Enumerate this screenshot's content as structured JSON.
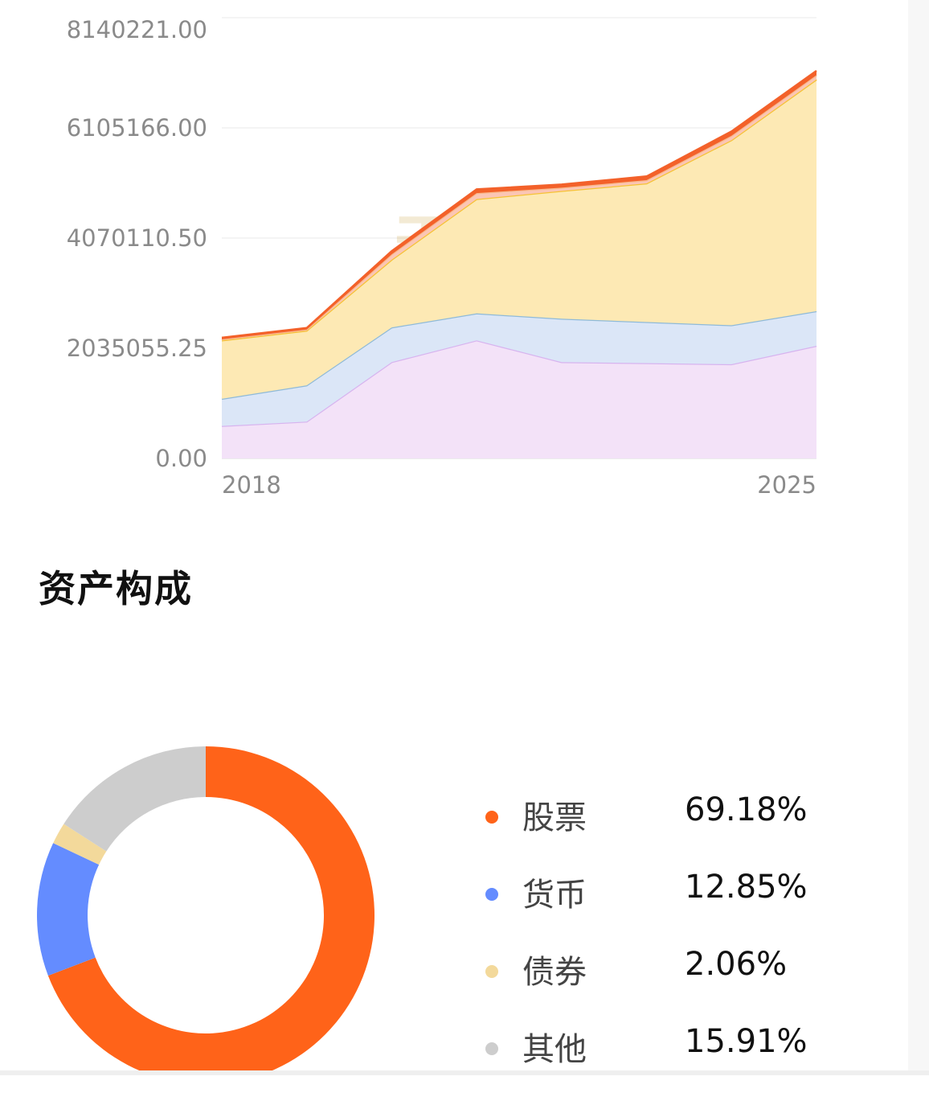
{
  "area_chart": {
    "watermark": "天天基金",
    "y_tick_labels": [
      "8140221.00",
      "6105166.00",
      "4070110.50",
      "2035055.25",
      "0.00"
    ],
    "x_tick_labels": [
      "2018",
      "2025"
    ]
  },
  "chart_data": [
    {
      "type": "area",
      "stacked": true,
      "x": [
        "2018",
        "",
        "",
        "",
        "",
        "",
        "",
        "2025"
      ],
      "ylim": [
        0,
        8140221
      ],
      "yticks": [
        0,
        2035055.25,
        4070110.5,
        6105166,
        8140221
      ],
      "grid": true,
      "series": [
        {
          "color": "#f3e2f8",
          "line_color": "#d7b4ef",
          "values": [
            600000,
            680000,
            1780000,
            2180000,
            1780000,
            1760000,
            1740000,
            2080000
          ]
        },
        {
          "color": "#dbe6f7",
          "line_color": "#8fbad8",
          "values": [
            500000,
            670000,
            640000,
            500000,
            800000,
            760000,
            720000,
            640000
          ]
        },
        {
          "color": "#fde9b4",
          "line_color": "#f6c235",
          "values": [
            1080000,
            1010000,
            1250000,
            2110000,
            2360000,
            2560000,
            3420000,
            4280000
          ]
        },
        {
          "color": "#fbc6b5",
          "line_color": "#f9b98d",
          "values": [
            20000,
            20000,
            100000,
            110000,
            60000,
            60000,
            80000,
            80000
          ]
        },
        {
          "color": "#f3612a",
          "line_color": "#f3612a",
          "values": [
            30000,
            30000,
            60000,
            70000,
            60000,
            70000,
            80000,
            80000
          ]
        }
      ]
    },
    {
      "type": "pie",
      "donut": true,
      "title": "资产构成",
      "slices": [
        {
          "label": "股票",
          "value": 69.18,
          "display": "69.18%",
          "color": "#ff6319"
        },
        {
          "label": "货币",
          "value": 12.85,
          "display": "12.85%",
          "color": "#648cff"
        },
        {
          "label": "债券",
          "value": 2.06,
          "display": "2.06%",
          "color": "#f3d99b"
        },
        {
          "label": "其他",
          "value": 15.91,
          "display": "15.91%",
          "color": "#cdcdcd"
        }
      ]
    }
  ]
}
